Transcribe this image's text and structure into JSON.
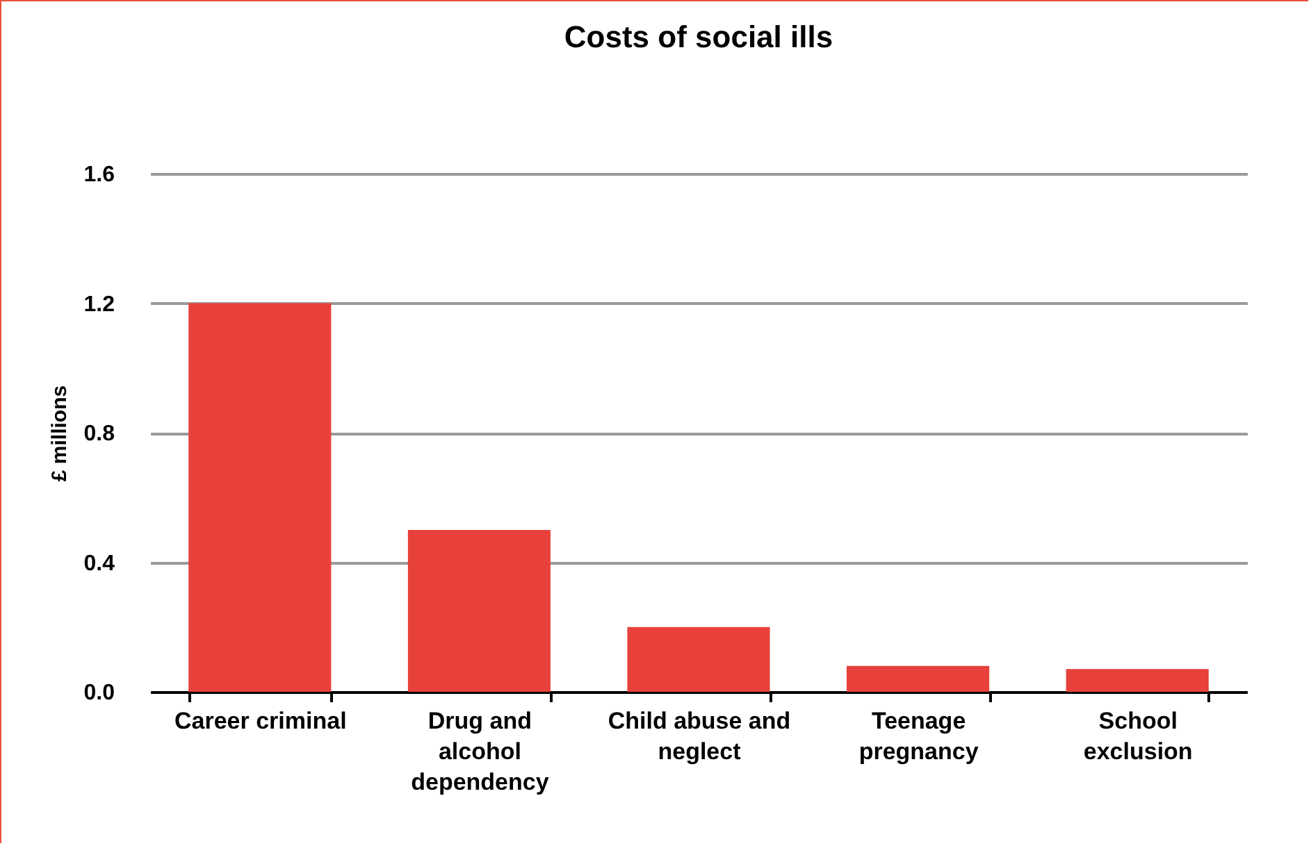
{
  "chart_data": {
    "type": "bar",
    "title": "Costs of social ills",
    "ylabel": "£ millions",
    "categories": [
      "Career criminal",
      "Drug and alcohol dependency",
      "Child abuse and neglect",
      "Teenage pregnancy",
      "School exclusion"
    ],
    "values": [
      1.2,
      0.5,
      0.2,
      0.08,
      0.07
    ],
    "color": "#e8403a",
    "ylim": [
      0,
      1.6
    ],
    "yticks": [
      {
        "value": 0,
        "label": "0.0"
      },
      {
        "value": 0.4,
        "label": "0.4"
      },
      {
        "value": 0.8,
        "label": "0.8"
      },
      {
        "value": 1.2,
        "label": "1.2"
      },
      {
        "value": 1.6,
        "label": "1.6"
      }
    ],
    "grid": "y"
  }
}
